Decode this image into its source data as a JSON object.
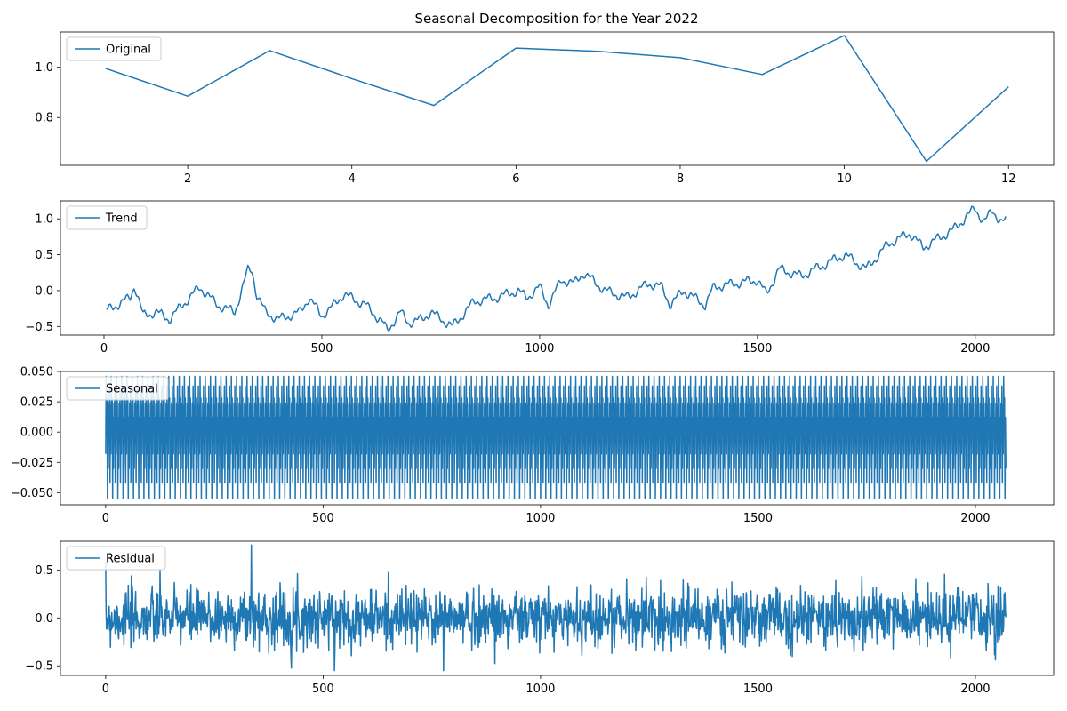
{
  "figure": {
    "title": "Seasonal Decomposition for the Year 2022",
    "line_color": "#1f77b4"
  },
  "chart_data": [
    {
      "type": "line",
      "title": "",
      "xlabel": "",
      "ylabel": "",
      "legend": "top-left",
      "grid": false,
      "xlim": [
        0.45,
        12.55
      ],
      "ylim": [
        0.61,
        1.14
      ],
      "xticks": [
        2,
        4,
        6,
        8,
        10,
        12
      ],
      "yticks": [
        0.8,
        1.0
      ],
      "series": [
        {
          "name": "Original",
          "x": [
            1,
            2,
            3,
            4,
            5,
            6,
            7,
            8,
            9,
            10,
            11,
            12
          ],
          "y": [
            0.995,
            0.885,
            1.066,
            0.955,
            0.848,
            1.076,
            1.063,
            1.038,
            0.971,
            1.126,
            0.626,
            0.922
          ]
        }
      ]
    },
    {
      "type": "line",
      "title": "",
      "xlabel": "",
      "ylabel": "",
      "legend": "top-left",
      "grid": false,
      "xlim": [
        -100,
        2180
      ],
      "ylim": [
        -0.62,
        1.25
      ],
      "xticks": [
        0,
        500,
        1000,
        1500,
        2000
      ],
      "yticks": [
        -0.5,
        0.0,
        0.5,
        1.0
      ],
      "series": [
        {
          "name": "Trend",
          "x": [
            6,
            30,
            60,
            70,
            90,
            120,
            150,
            180,
            220,
            260,
            300,
            330,
            340,
            350,
            370,
            400,
            450,
            470,
            500,
            520,
            550,
            600,
            640,
            650,
            680,
            700,
            730,
            750,
            800,
            850,
            900,
            950,
            970,
            1000,
            1020,
            1050,
            1080,
            1100,
            1150,
            1200,
            1250,
            1280,
            1300,
            1330,
            1380,
            1400,
            1450,
            1500,
            1520,
            1550,
            1600,
            1650,
            1700,
            1750,
            1800,
            1850,
            1880,
            1950,
            2000,
            2020,
            2040,
            2060,
            2070
          ],
          "y": [
            -0.28,
            -0.2,
            -0.1,
            0.08,
            -0.35,
            -0.3,
            -0.4,
            -0.2,
            0.05,
            -0.2,
            -0.3,
            0.28,
            0.29,
            -0.05,
            -0.3,
            -0.4,
            -0.3,
            -0.1,
            -0.35,
            -0.25,
            -0.05,
            -0.2,
            -0.45,
            -0.56,
            -0.3,
            -0.45,
            -0.4,
            -0.3,
            -0.5,
            -0.15,
            -0.1,
            0.0,
            -0.1,
            0.05,
            -0.2,
            0.15,
            0.1,
            0.25,
            0.0,
            -0.1,
            0.1,
            0.05,
            -0.2,
            0.0,
            -0.2,
            0.05,
            0.1,
            0.15,
            -0.05,
            0.3,
            0.2,
            0.35,
            0.5,
            0.3,
            0.65,
            0.8,
            0.6,
            0.85,
            1.15,
            0.95,
            1.12,
            0.95,
            0.97
          ]
        }
      ]
    },
    {
      "type": "line",
      "title": "",
      "xlabel": "",
      "ylabel": "",
      "legend": "top-left",
      "grid": false,
      "xlim": [
        -104,
        2180
      ],
      "ylim": [
        -0.06,
        0.05
      ],
      "xticks": [
        0,
        500,
        1000,
        1500,
        2000
      ],
      "yticks": [
        -0.05,
        -0.025,
        0.0,
        0.025,
        0.05
      ],
      "series": [
        {
          "name": "Seasonal",
          "period": 12,
          "x_range": [
            0,
            2070
          ],
          "pattern": [
            -0.018,
            0.046,
            0.005,
            0.028,
            -0.055,
            0.012,
            -0.03,
            0.024,
            -0.01,
            0.038,
            -0.042,
            0.022
          ]
        }
      ]
    },
    {
      "type": "line",
      "title": "",
      "xlabel": "",
      "ylabel": "",
      "legend": "top-left",
      "grid": false,
      "xlim": [
        -104,
        2180
      ],
      "ylim": [
        -0.6,
        0.8
      ],
      "xticks": [
        0,
        500,
        1000,
        1500,
        2000
      ],
      "yticks": [
        -0.5,
        0.0,
        0.5
      ],
      "series": [
        {
          "name": "Residual",
          "x_range": [
            0,
            2070
          ],
          "approx_std": 0.15,
          "approx_min": -0.55,
          "approx_max": 0.76,
          "spike_at": 335
        }
      ]
    }
  ]
}
